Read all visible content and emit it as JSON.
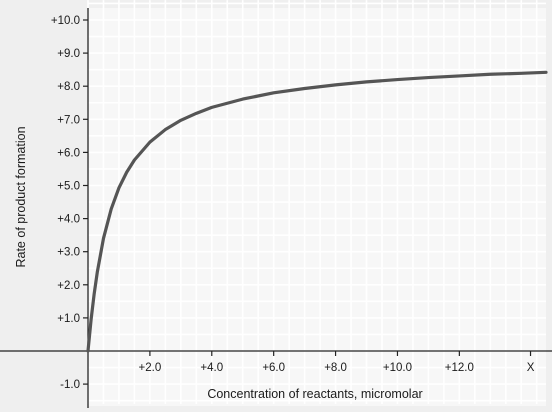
{
  "chart_data": {
    "type": "line",
    "title": "",
    "xlabel": "Concentration of reactants, micromolar",
    "ylabel": "Rate of product formation",
    "xlim": [
      0,
      14.8
    ],
    "ylim": [
      -1.6,
      10.6
    ],
    "grid": true,
    "x_ticks": [
      {
        "value": 2,
        "label": "+2.0"
      },
      {
        "value": 4,
        "label": "+4.0"
      },
      {
        "value": 6,
        "label": "+6.0"
      },
      {
        "value": 8,
        "label": "+8.0"
      },
      {
        "value": 10,
        "label": "+10.0"
      },
      {
        "value": 12,
        "label": "+12.0"
      },
      {
        "value": 14.3,
        "label": "X"
      }
    ],
    "y_ticks": [
      {
        "value": 10,
        "label": "+10.0"
      },
      {
        "value": 9,
        "label": "+9.0"
      },
      {
        "value": 8,
        "label": "+8.0"
      },
      {
        "value": 7,
        "label": "+7.0"
      },
      {
        "value": 6,
        "label": "+6.0"
      },
      {
        "value": 5,
        "label": "+5.0"
      },
      {
        "value": 4,
        "label": "+4.0"
      },
      {
        "value": 3,
        "label": "+3.0"
      },
      {
        "value": 2,
        "label": "+2.0"
      },
      {
        "value": 1,
        "label": "+1.0"
      },
      {
        "value": -1,
        "label": "-1.0"
      }
    ],
    "series": [
      {
        "color": "#555555",
        "x": [
          0,
          0.1,
          0.2,
          0.3,
          0.5,
          0.75,
          1.0,
          1.25,
          1.5,
          2.0,
          2.5,
          3.0,
          3.5,
          4.0,
          5.0,
          6.0,
          7.0,
          8.0,
          9.0,
          10.0,
          11.0,
          12.0,
          13.0,
          14.0,
          14.8
        ],
        "y": [
          0,
          0.95,
          1.73,
          2.38,
          3.4,
          4.29,
          4.93,
          5.4,
          5.77,
          6.31,
          6.69,
          6.97,
          7.18,
          7.36,
          7.61,
          7.8,
          7.93,
          8.04,
          8.13,
          8.2,
          8.26,
          8.31,
          8.36,
          8.39,
          8.42
        ]
      }
    ]
  }
}
